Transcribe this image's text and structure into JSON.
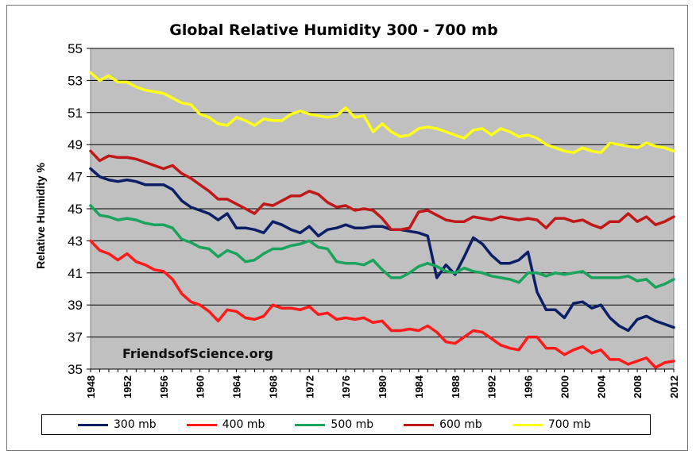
{
  "chart_data": {
    "type": "line",
    "title": "Global Relative Humidity 300 - 700 mb",
    "xlabel": "",
    "ylabel": "Relative Humidity %",
    "annotation": "FriendsofScience.org",
    "xlim": [
      1948,
      2012
    ],
    "ylim": [
      35,
      55
    ],
    "yticks": [
      35,
      37,
      39,
      41,
      43,
      45,
      47,
      49,
      51,
      53,
      55
    ],
    "xticks": [
      1948,
      1952,
      1956,
      1960,
      1964,
      1968,
      1972,
      1976,
      1980,
      1984,
      1988,
      1992,
      1996,
      2000,
      2004,
      2008,
      2012
    ],
    "grid": true,
    "legend_position": "bottom",
    "x": [
      1948,
      1949,
      1950,
      1951,
      1952,
      1953,
      1954,
      1955,
      1956,
      1957,
      1958,
      1959,
      1960,
      1961,
      1962,
      1963,
      1964,
      1965,
      1966,
      1967,
      1968,
      1969,
      1970,
      1971,
      1972,
      1973,
      1974,
      1975,
      1976,
      1977,
      1978,
      1979,
      1980,
      1981,
      1982,
      1983,
      1984,
      1985,
      1986,
      1987,
      1988,
      1989,
      1990,
      1991,
      1992,
      1993,
      1994,
      1995,
      1996,
      1997,
      1998,
      1999,
      2000,
      2001,
      2002,
      2003,
      2004,
      2005,
      2006,
      2007,
      2008,
      2009,
      2010,
      2011,
      2012
    ],
    "series": [
      {
        "name": "300 mb",
        "color": "#0b1f66",
        "values": [
          47.5,
          47.0,
          46.8,
          46.7,
          46.8,
          46.7,
          46.5,
          46.5,
          46.5,
          46.2,
          45.5,
          45.1,
          44.9,
          44.7,
          44.3,
          44.7,
          43.8,
          43.8,
          43.7,
          43.5,
          44.2,
          44.0,
          43.7,
          43.5,
          43.9,
          43.3,
          43.7,
          43.8,
          44.0,
          43.8,
          43.8,
          43.9,
          43.9,
          43.7,
          43.7,
          43.6,
          43.5,
          43.3,
          40.7,
          41.5,
          40.9,
          42.0,
          43.2,
          42.8,
          42.1,
          41.6,
          41.6,
          41.8,
          42.3,
          39.8,
          38.7,
          38.7,
          38.2,
          39.1,
          39.2,
          38.8,
          39.0,
          38.2,
          37.7,
          37.4,
          38.1,
          38.3,
          38.0,
          37.8,
          37.6
        ]
      },
      {
        "name": "400 mb",
        "color": "#ff1a1a",
        "values": [
          43.0,
          42.4,
          42.2,
          41.8,
          42.2,
          41.7,
          41.5,
          41.2,
          41.1,
          40.6,
          39.7,
          39.2,
          39.0,
          38.6,
          38.0,
          38.7,
          38.6,
          38.2,
          38.1,
          38.3,
          39.0,
          38.8,
          38.8,
          38.7,
          38.9,
          38.4,
          38.5,
          38.1,
          38.2,
          38.1,
          38.2,
          37.9,
          38.0,
          37.4,
          37.4,
          37.5,
          37.4,
          37.7,
          37.3,
          36.7,
          36.6,
          37.0,
          37.4,
          37.3,
          36.9,
          36.5,
          36.3,
          36.2,
          37.0,
          37.0,
          36.3,
          36.3,
          35.9,
          36.2,
          36.4,
          36.0,
          36.2,
          35.6,
          35.6,
          35.3,
          35.5,
          35.7,
          35.1,
          35.4,
          35.5
        ]
      },
      {
        "name": "500 mb",
        "color": "#1aa35a",
        "values": [
          45.2,
          44.6,
          44.5,
          44.3,
          44.4,
          44.3,
          44.1,
          44.0,
          44.0,
          43.8,
          43.1,
          42.9,
          42.6,
          42.5,
          42.0,
          42.4,
          42.2,
          41.7,
          41.8,
          42.2,
          42.5,
          42.5,
          42.7,
          42.8,
          43.0,
          42.6,
          42.5,
          41.7,
          41.6,
          41.6,
          41.5,
          41.8,
          41.2,
          40.7,
          40.7,
          41.0,
          41.4,
          41.6,
          41.4,
          41.1,
          41.0,
          41.3,
          41.1,
          41.0,
          40.8,
          40.7,
          40.6,
          40.4,
          41.0,
          41.0,
          40.8,
          41.0,
          40.9,
          41.0,
          41.1,
          40.7,
          40.7,
          40.7,
          40.7,
          40.8,
          40.5,
          40.6,
          40.1,
          40.3,
          40.6
        ]
      },
      {
        "name": "600 mb",
        "color": "#c01818",
        "values": [
          48.6,
          48.0,
          48.3,
          48.2,
          48.2,
          48.1,
          47.9,
          47.7,
          47.5,
          47.7,
          47.2,
          46.9,
          46.5,
          46.1,
          45.6,
          45.6,
          45.3,
          45.0,
          44.7,
          45.3,
          45.2,
          45.5,
          45.8,
          45.8,
          46.1,
          45.9,
          45.4,
          45.1,
          45.2,
          44.9,
          45.0,
          44.9,
          44.4,
          43.7,
          43.7,
          43.8,
          44.8,
          44.9,
          44.6,
          44.3,
          44.2,
          44.2,
          44.5,
          44.4,
          44.3,
          44.5,
          44.4,
          44.3,
          44.4,
          44.3,
          43.8,
          44.4,
          44.4,
          44.2,
          44.3,
          44.0,
          43.8,
          44.2,
          44.2,
          44.7,
          44.2,
          44.5,
          44.0,
          44.2,
          44.5
        ]
      },
      {
        "name": "700 mb",
        "color": "#ffff1a",
        "values": [
          53.5,
          53.0,
          53.3,
          52.9,
          52.9,
          52.6,
          52.4,
          52.3,
          52.2,
          51.9,
          51.6,
          51.5,
          50.9,
          50.7,
          50.3,
          50.2,
          50.7,
          50.5,
          50.2,
          50.6,
          50.5,
          50.5,
          50.9,
          51.1,
          50.9,
          50.8,
          50.7,
          50.8,
          51.3,
          50.7,
          50.8,
          49.8,
          50.3,
          49.8,
          49.5,
          49.6,
          50.0,
          50.1,
          50.0,
          49.8,
          49.6,
          49.4,
          49.9,
          50.0,
          49.6,
          50.0,
          49.8,
          49.5,
          49.6,
          49.4,
          49.0,
          48.8,
          48.6,
          48.5,
          48.8,
          48.6,
          48.5,
          49.1,
          49.0,
          48.9,
          48.8,
          49.1,
          48.9,
          48.8,
          48.6
        ]
      }
    ]
  }
}
